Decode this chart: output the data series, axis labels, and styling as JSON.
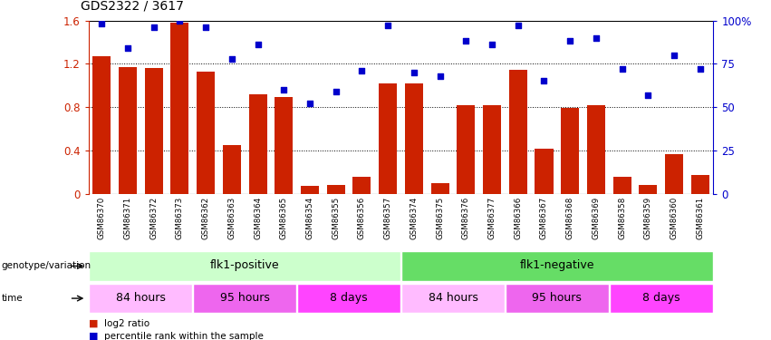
{
  "title": "GDS2322 / 3617",
  "samples": [
    "GSM86370",
    "GSM86371",
    "GSM86372",
    "GSM86373",
    "GSM86362",
    "GSM86363",
    "GSM86364",
    "GSM86365",
    "GSM86354",
    "GSM86355",
    "GSM86356",
    "GSM86357",
    "GSM86374",
    "GSM86375",
    "GSM86376",
    "GSM86377",
    "GSM86366",
    "GSM86367",
    "GSM86368",
    "GSM86369",
    "GSM86358",
    "GSM86359",
    "GSM86360",
    "GSM86361"
  ],
  "log2_ratio": [
    1.27,
    1.17,
    1.16,
    1.58,
    1.13,
    0.45,
    0.92,
    0.89,
    0.07,
    0.08,
    0.16,
    1.02,
    1.02,
    0.1,
    0.82,
    0.82,
    1.14,
    0.42,
    0.79,
    0.82,
    0.16,
    0.08,
    0.37,
    0.17
  ],
  "percentile": [
    98,
    84,
    96,
    100,
    96,
    78,
    86,
    60,
    52,
    59,
    71,
    97,
    70,
    68,
    88,
    86,
    97,
    65,
    88,
    90,
    72,
    57,
    80,
    72
  ],
  "bar_color": "#cc2200",
  "dot_color": "#0000cc",
  "left_ylim": [
    0,
    1.6
  ],
  "left_yticks": [
    0,
    0.4,
    0.8,
    1.2,
    1.6
  ],
  "right_ylim": [
    0,
    100
  ],
  "right_yticks": [
    0,
    25,
    50,
    75,
    100
  ],
  "genotype_groups": [
    {
      "label": "flk1-positive",
      "start": 0,
      "end": 12,
      "color": "#ccffcc"
    },
    {
      "label": "flk1-negative",
      "start": 12,
      "end": 24,
      "color": "#66dd66"
    }
  ],
  "time_groups": [
    {
      "label": "84 hours",
      "start": 0,
      "end": 4,
      "color": "#ffbbff"
    },
    {
      "label": "95 hours",
      "start": 4,
      "end": 8,
      "color": "#ee66ee"
    },
    {
      "label": "8 days",
      "start": 8,
      "end": 12,
      "color": "#ff44ff"
    },
    {
      "label": "84 hours",
      "start": 12,
      "end": 16,
      "color": "#ffbbff"
    },
    {
      "label": "95 hours",
      "start": 16,
      "end": 20,
      "color": "#ee66ee"
    },
    {
      "label": "8 days",
      "start": 20,
      "end": 24,
      "color": "#ff44ff"
    }
  ],
  "xtick_bg": "#cccccc",
  "genotype_label": "genotype/variation",
  "time_label": "time",
  "legend_items": [
    {
      "label": "log2 ratio",
      "color": "#cc2200"
    },
    {
      "label": "percentile rank within the sample",
      "color": "#0000cc"
    }
  ]
}
